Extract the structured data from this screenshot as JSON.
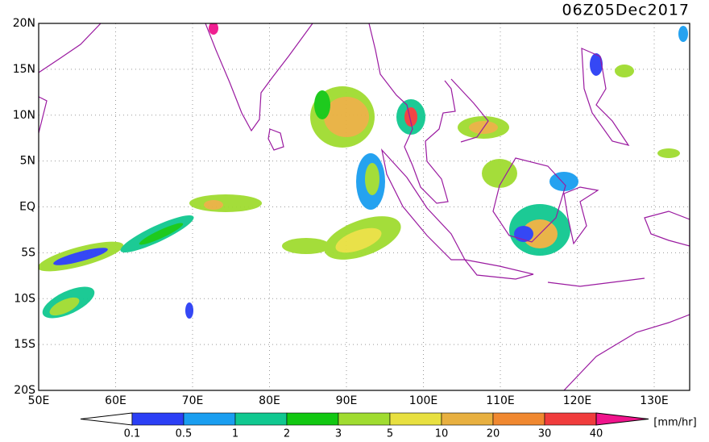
{
  "header": {
    "title": "06Z05Dec2017"
  },
  "map": {
    "lat_labels": [
      "20N",
      "15N",
      "10N",
      "5N",
      "EQ",
      "5S",
      "10S",
      "15S",
      "20S"
    ],
    "lon_labels": [
      "50E",
      "60E",
      "70E",
      "80E",
      "90E",
      "100E",
      "110E",
      "120E",
      "130E"
    ]
  },
  "colorbar": {
    "labels": [
      "0.1",
      "0.5",
      "1",
      "2",
      "3",
      "5",
      "10",
      "20",
      "30",
      "40"
    ],
    "unit": "[mm/hr]",
    "colors": [
      "#ffffff",
      "#2b3ff5",
      "#1a9ef0",
      "#10c890",
      "#12c812",
      "#a0dc30",
      "#e8e040",
      "#e8b040",
      "#f08830",
      "#f03c3c",
      "#f0148c"
    ]
  }
}
